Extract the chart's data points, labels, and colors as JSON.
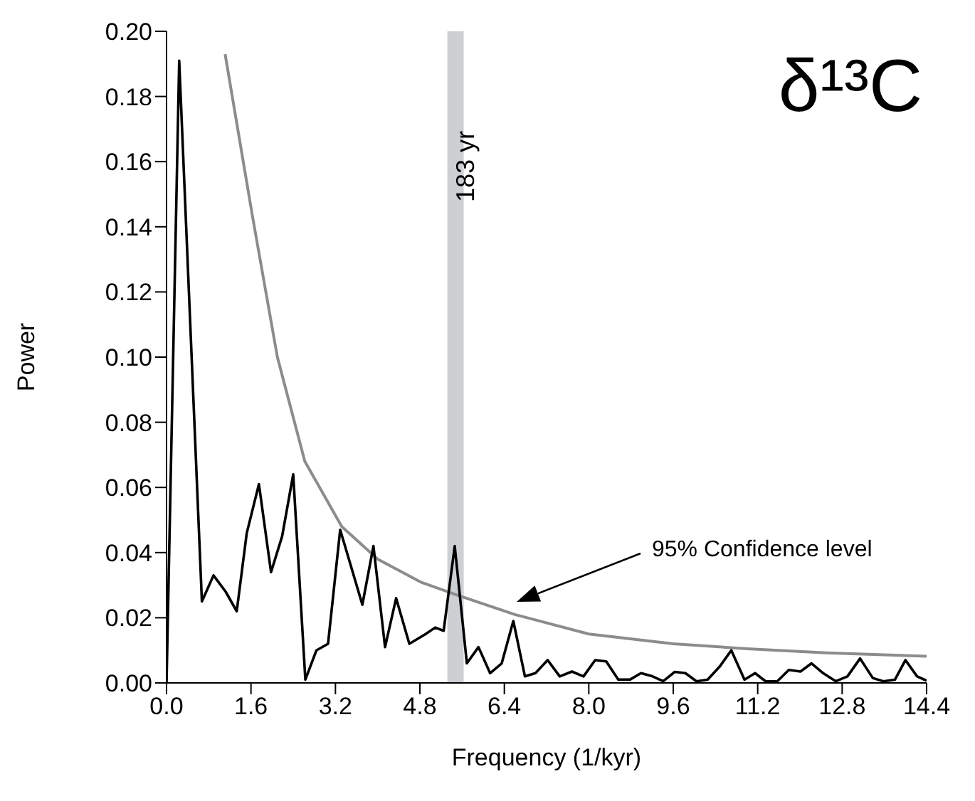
{
  "chart_data": {
    "type": "line",
    "title": "δ¹³C",
    "xlabel": "Frequency (1/kyr)",
    "ylabel": "Power",
    "series": [
      {
        "color": "#000000",
        "x": [
          0,
          0.24,
          0.67,
          0.89,
          1.12,
          1.33,
          1.52,
          1.75,
          1.98,
          2.19,
          2.4,
          2.63,
          2.84,
          3.06,
          3.29,
          3.71,
          3.92,
          4.14,
          4.35,
          4.6,
          4.91,
          5.09,
          5.25,
          5.46,
          5.69,
          5.91,
          6.13,
          6.35,
          6.57,
          6.79,
          6.99,
          7.22,
          7.45,
          7.68,
          7.9,
          8.12,
          8.33,
          8.56,
          8.78,
          8.99,
          9.21,
          9.41,
          9.63,
          9.83,
          10.04,
          10.25,
          10.48,
          10.7,
          10.95,
          11.15,
          11.35,
          11.57,
          11.79,
          12.01,
          12.22,
          12.44,
          12.68,
          12.9,
          13.14,
          13.38,
          13.58,
          13.8,
          14.0,
          14.22,
          14.4
        ],
        "values": [
          0,
          0.191,
          0.025,
          0.033,
          0.028,
          0.022,
          0.046,
          0.061,
          0.034,
          0.045,
          0.064,
          0.001,
          0.01,
          0.012,
          0.047,
          0.024,
          0.042,
          0.011,
          0.026,
          0.012,
          0.015,
          0.017,
          0.016,
          0.042,
          0.006,
          0.011,
          0.003,
          0.006,
          0.019,
          0.002,
          0.003,
          0.007,
          0.002,
          0.0035,
          0.002,
          0.007,
          0.0066,
          0.001,
          0.001,
          0.003,
          0.002,
          0.0005,
          0.0034,
          0.003,
          0.0005,
          0.001,
          0.005,
          0.01,
          0.001,
          0.003,
          0.0005,
          0.0005,
          0.004,
          0.0035,
          0.006,
          0.003,
          0.0005,
          0.002,
          0.0075,
          0.0015,
          0.0005,
          0.001,
          0.007,
          0.002,
          0.0007
        ]
      },
      {
        "color": "#8c8c8c",
        "x": [
          1.11,
          1.62,
          2.1,
          2.62,
          3.32,
          4.0,
          4.81,
          5.5,
          6.6,
          8.0,
          9.6,
          11.0,
          12.5,
          14.4
        ],
        "values": [
          0.193,
          0.144,
          0.1,
          0.068,
          0.048,
          0.038,
          0.031,
          0.027,
          0.021,
          0.015,
          0.012,
          0.0105,
          0.0092,
          0.0082
        ]
      }
    ],
    "xlim": [
      0,
      14.4
    ],
    "xticks": [
      {
        "value": 0,
        "label": "0.0"
      },
      1.6,
      3.2,
      4.8,
      6.4,
      {
        "value": 8,
        "label": "8.0"
      },
      9.6,
      11.2,
      12.8,
      14.4
    ],
    "ylim": [
      0,
      0.2
    ],
    "yticks": [
      {
        "value": 0,
        "label": "0.00"
      },
      0.02,
      0.04,
      0.06,
      0.08,
      {
        "value": 0.1,
        "label": "0.10"
      },
      0.12,
      0.14,
      0.16,
      0.18,
      {
        "value": 0.2,
        "label": "0.20"
      }
    ],
    "bands": [
      {
        "axis": "x",
        "from": 5.32,
        "to": 5.63,
        "label": "183 yr",
        "color": "#cdd0d3"
      }
    ],
    "annotations": [
      "95% Confidence level"
    ],
    "grid": false,
    "legend": false,
    "marker": "none",
    "line_style": "solid"
  }
}
